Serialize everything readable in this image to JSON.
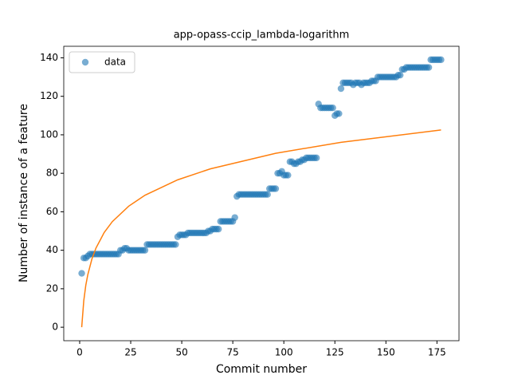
{
  "chart_data": {
    "type": "scatter",
    "title": "app-opass-ccip_lambda-logarithm",
    "x_label": "Commit number",
    "y_label": "Number of instance of a feature",
    "xlim": [
      -7.8,
      185.8
    ],
    "ylim": [
      -7,
      146
    ],
    "xticks": [
      0,
      25,
      50,
      75,
      100,
      125,
      150,
      175
    ],
    "yticks": [
      0,
      20,
      40,
      60,
      80,
      100,
      120,
      140
    ],
    "legend": "upper left",
    "series": [
      {
        "name": "data",
        "type": "scatter",
        "color": "#1f77b4",
        "x": [
          1,
          2,
          3,
          4,
          5,
          6,
          7,
          8,
          9,
          10,
          11,
          12,
          13,
          14,
          15,
          16,
          17,
          18,
          19,
          20,
          21,
          22,
          23,
          24,
          25,
          26,
          27,
          28,
          29,
          30,
          31,
          32,
          33,
          34,
          35,
          36,
          37,
          38,
          39,
          40,
          41,
          42,
          43,
          44,
          45,
          46,
          47,
          48,
          49,
          50,
          51,
          52,
          53,
          54,
          55,
          56,
          57,
          58,
          59,
          60,
          61,
          62,
          63,
          64,
          65,
          66,
          67,
          68,
          69,
          70,
          71,
          72,
          73,
          74,
          75,
          76,
          77,
          78,
          79,
          80,
          81,
          82,
          83,
          84,
          85,
          86,
          87,
          88,
          89,
          90,
          91,
          92,
          93,
          94,
          95,
          96,
          97,
          98,
          99,
          100,
          101,
          102,
          103,
          104,
          105,
          106,
          107,
          108,
          109,
          110,
          111,
          112,
          113,
          114,
          115,
          116,
          117,
          118,
          119,
          120,
          121,
          122,
          123,
          124,
          125,
          126,
          127,
          128,
          129,
          130,
          131,
          132,
          133,
          134,
          135,
          136,
          137,
          138,
          139,
          140,
          141,
          142,
          143,
          144,
          145,
          146,
          147,
          148,
          149,
          150,
          151,
          152,
          153,
          154,
          155,
          156,
          157,
          158,
          159,
          160,
          161,
          162,
          163,
          164,
          165,
          166,
          167,
          168,
          169,
          170,
          171,
          172,
          173,
          174,
          175,
          176,
          177
        ],
        "values": [
          28,
          36,
          36,
          37,
          38,
          38,
          38,
          38,
          38,
          38,
          38,
          38,
          38,
          38,
          38,
          38,
          38,
          38,
          38,
          40,
          40,
          41,
          41,
          40,
          40,
          40,
          40,
          40,
          40,
          40,
          40,
          40,
          43,
          43,
          43,
          43,
          43,
          43,
          43,
          43,
          43,
          43,
          43,
          43,
          43,
          43,
          43,
          47,
          48,
          48,
          48,
          48,
          49,
          49,
          49,
          49,
          49,
          49,
          49,
          49,
          49,
          49,
          50,
          50,
          51,
          51,
          51,
          51,
          55,
          55,
          55,
          55,
          55,
          55,
          55,
          57,
          68,
          69,
          69,
          69,
          69,
          69,
          69,
          69,
          69,
          69,
          69,
          69,
          69,
          69,
          69,
          69,
          72,
          72,
          72,
          72,
          80,
          80,
          81,
          79,
          79,
          79,
          86,
          86,
          85,
          85,
          86,
          86,
          87,
          87,
          88,
          88,
          88,
          88,
          88,
          88,
          116,
          114,
          114,
          114,
          114,
          114,
          114,
          114,
          110,
          111,
          111,
          124,
          127,
          127,
          127,
          127,
          127,
          126,
          127,
          127,
          127,
          126,
          127,
          127,
          127,
          127,
          128,
          128,
          128,
          130,
          130,
          130,
          130,
          130,
          130,
          130,
          130,
          130,
          130,
          131,
          131,
          134,
          134,
          135,
          135,
          135,
          135,
          135,
          135,
          135,
          135,
          135,
          135,
          135,
          135,
          139,
          139,
          139,
          139,
          139,
          139
        ]
      },
      {
        "type": "line",
        "color": "#ff7f0e",
        "x": [
          1,
          2,
          3,
          4,
          6,
          8,
          12,
          16,
          24,
          32,
          48,
          64,
          96,
          128,
          177
        ],
        "values": [
          0,
          13.7,
          21.8,
          27.4,
          35.5,
          41.2,
          49.2,
          54.9,
          62.9,
          68.6,
          76.6,
          82.3,
          90.4,
          96.1,
          102.5
        ]
      }
    ]
  }
}
